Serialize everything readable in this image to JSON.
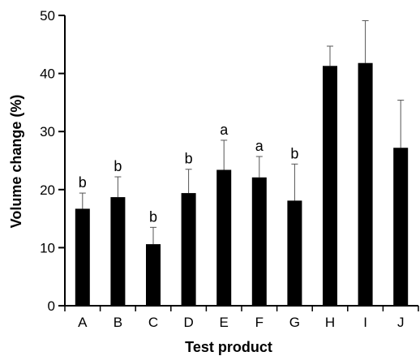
{
  "chart_data": {
    "type": "bar",
    "xlabel": "Test product",
    "ylabel": "Volume change (%)",
    "ylim": [
      0,
      50
    ],
    "yticks": [
      0,
      10,
      20,
      30,
      40,
      50
    ],
    "categories": [
      "A",
      "B",
      "C",
      "D",
      "E",
      "F",
      "G",
      "H",
      "I",
      "J"
    ],
    "values": [
      16.7,
      18.7,
      10.6,
      19.4,
      23.4,
      22.1,
      18.1,
      41.3,
      41.8,
      27.2
    ],
    "error_upper": [
      19.4,
      22.2,
      13.5,
      23.5,
      28.5,
      25.7,
      24.4,
      44.7,
      49.1,
      35.4
    ],
    "annotations": [
      "b",
      "b",
      "b",
      "b",
      "a",
      "a",
      "b",
      "",
      "",
      ""
    ],
    "grid": false,
    "colors": {
      "bar": "#000000",
      "axis": "#000000"
    }
  }
}
